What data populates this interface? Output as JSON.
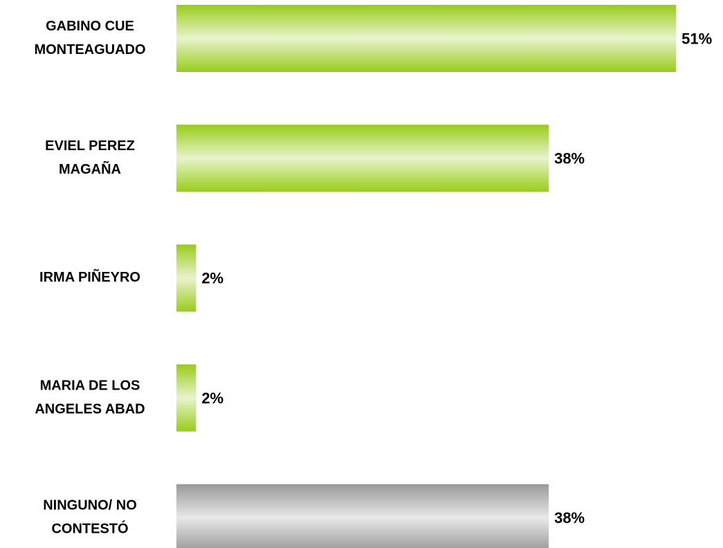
{
  "chart_data": {
    "type": "hbar",
    "categories": [
      [
        "GABINO CUE",
        "MONTEAGUADO"
      ],
      [
        "EVIEL PEREZ",
        "MAGAÑA"
      ],
      [
        "IRMA PIÑEYRO"
      ],
      [
        "MARIA DE LOS",
        "ANGELES ABAD"
      ],
      [
        "NINGUNO/ NO",
        "CONTESTÓ"
      ]
    ],
    "values": [
      51,
      38,
      2,
      2,
      38
    ],
    "value_labels": [
      "51%",
      "38%",
      "2%",
      "2%",
      "38%"
    ],
    "colors": [
      "#99cc1a",
      "#99cc1a",
      "#99cc1a",
      "#99cc1a",
      "#999999"
    ]
  }
}
